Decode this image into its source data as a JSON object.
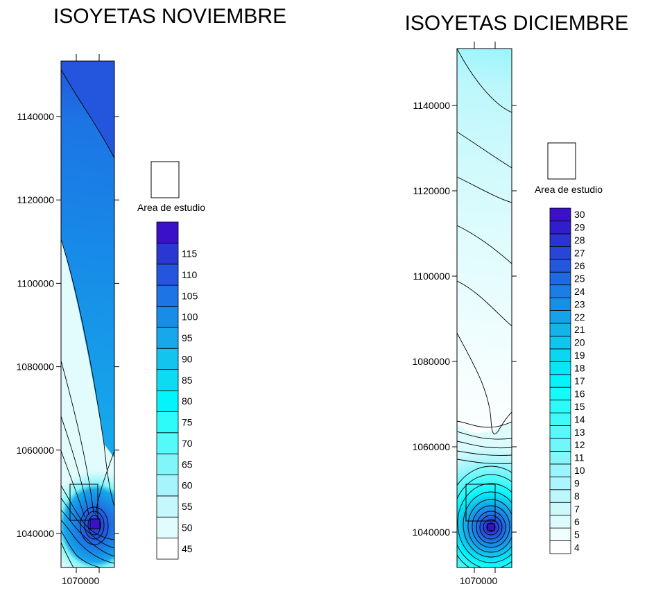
{
  "chart_data": [
    {
      "type": "heatmap",
      "title": "ISOYETAS NOVIEMBRE",
      "x_ticks": [
        "1070000"
      ],
      "y_ticks": [
        "1040000",
        "1060000",
        "1080000",
        "1100000",
        "1120000",
        "1140000"
      ],
      "ylim": [
        1031500,
        1154500
      ],
      "legend": {
        "label": "Area de estudio",
        "levels": [
          45,
          50,
          55,
          60,
          65,
          70,
          75,
          80,
          85,
          90,
          95,
          100,
          105,
          110,
          115
        ],
        "colors": [
          "#ffffff",
          "#e2fcfe",
          "#c4f8fc",
          "#a6f5fc",
          "#80f6fb",
          "#54fafa",
          "#2cfbfa",
          "#03f4fb",
          "#0cdcf2",
          "#12c4ee",
          "#16a8ea",
          "#178de8",
          "#1d74e4",
          "#2356dc",
          "#2a37d2",
          "#3a10c8"
        ]
      }
    },
    {
      "type": "heatmap",
      "title": "ISOYETAS DICIEMBRE",
      "x_ticks": [
        "1070000"
      ],
      "y_ticks": [
        "1040000",
        "1060000",
        "1080000",
        "1100000",
        "1120000",
        "1140000"
      ],
      "ylim": [
        1031500,
        1154500
      ],
      "legend": {
        "label": "Area de estudio",
        "levels": [
          4,
          5,
          6,
          7,
          8,
          9,
          10,
          11,
          12,
          13,
          14,
          15,
          16,
          17,
          18,
          19,
          20,
          21,
          22,
          23,
          24,
          25,
          26,
          27,
          28,
          29,
          30
        ],
        "colors": [
          "#ffffff",
          "#eefdfe",
          "#ddfbfd",
          "#ccf9fc",
          "#bcf7fc",
          "#abf5fc",
          "#9af5fc",
          "#86f6fb",
          "#6ff7fb",
          "#58f8fa",
          "#42f9fa",
          "#2cfbfa",
          "#16fafa",
          "#03f4fb",
          "#07e6f5",
          "#0cd6f1",
          "#10c6ee",
          "#14b4eb",
          "#16a2ea",
          "#178fe8",
          "#1b7de6",
          "#1f6ae2",
          "#2358dc",
          "#2746d6",
          "#2b34d0",
          "#311ecb",
          "#3a10c8"
        ]
      }
    }
  ]
}
